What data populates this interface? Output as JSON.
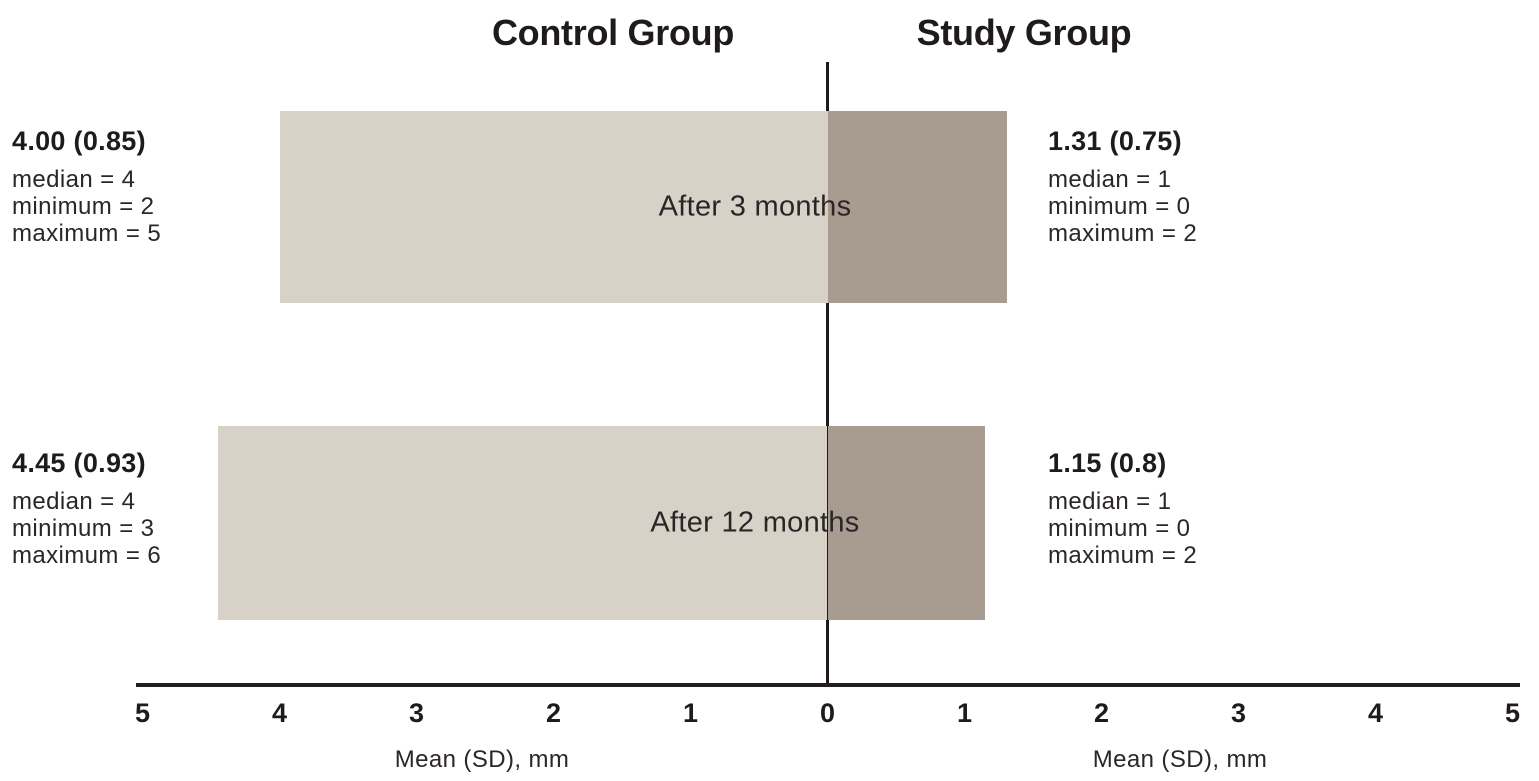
{
  "chart_data": {
    "type": "bar",
    "variant": "horizontal-diverging",
    "title_left": "Control Group",
    "title_right": "Study Group",
    "axis": {
      "xlim": [
        -5,
        5
      ],
      "tick_labels": [
        "5",
        "4",
        "3",
        "2",
        "1",
        "0",
        "1",
        "2",
        "3",
        "4",
        "5"
      ],
      "tick_values": [
        -5,
        -4,
        -3,
        -2,
        -1,
        0,
        1,
        2,
        3,
        4,
        5
      ],
      "xlabel_left": "Mean (SD), mm",
      "xlabel_right": "Mean (SD), mm",
      "grid": false
    },
    "rows": [
      {
        "label": "After 3 months",
        "control": {
          "mean": 4.0,
          "sd": 0.85,
          "mean_sd_label": "4.00 (0.85)",
          "median": 4,
          "minimum": 2,
          "maximum": 5,
          "median_label": "median = 4",
          "minimum_label": "minimum = 2",
          "maximum_label": "maximum = 5"
        },
        "study": {
          "mean": 1.31,
          "sd": 0.75,
          "mean_sd_label": "1.31 (0.75)",
          "median": 1,
          "minimum": 0,
          "maximum": 2,
          "median_label": "median = 1",
          "minimum_label": "minimum = 0",
          "maximum_label": "maximum = 2"
        }
      },
      {
        "label": "After 12 months",
        "control": {
          "mean": 4.45,
          "sd": 0.93,
          "mean_sd_label": "4.45 (0.93)",
          "median": 4,
          "minimum": 3,
          "maximum": 6,
          "median_label": "median = 4",
          "minimum_label": "minimum = 3",
          "maximum_label": "maximum = 6"
        },
        "study": {
          "mean": 1.15,
          "sd": 0.8,
          "mean_sd_label": "1.15 (0.8)",
          "median": 1,
          "minimum": 0,
          "maximum": 2,
          "median_label": "median = 1",
          "minimum_label": "minimum = 0",
          "maximum_label": "maximum = 2"
        }
      }
    ],
    "colors": {
      "control_bar": "#d8d1c7",
      "study_bar": "#a89c90",
      "text": "#231f20",
      "axis": "#231f20"
    }
  }
}
